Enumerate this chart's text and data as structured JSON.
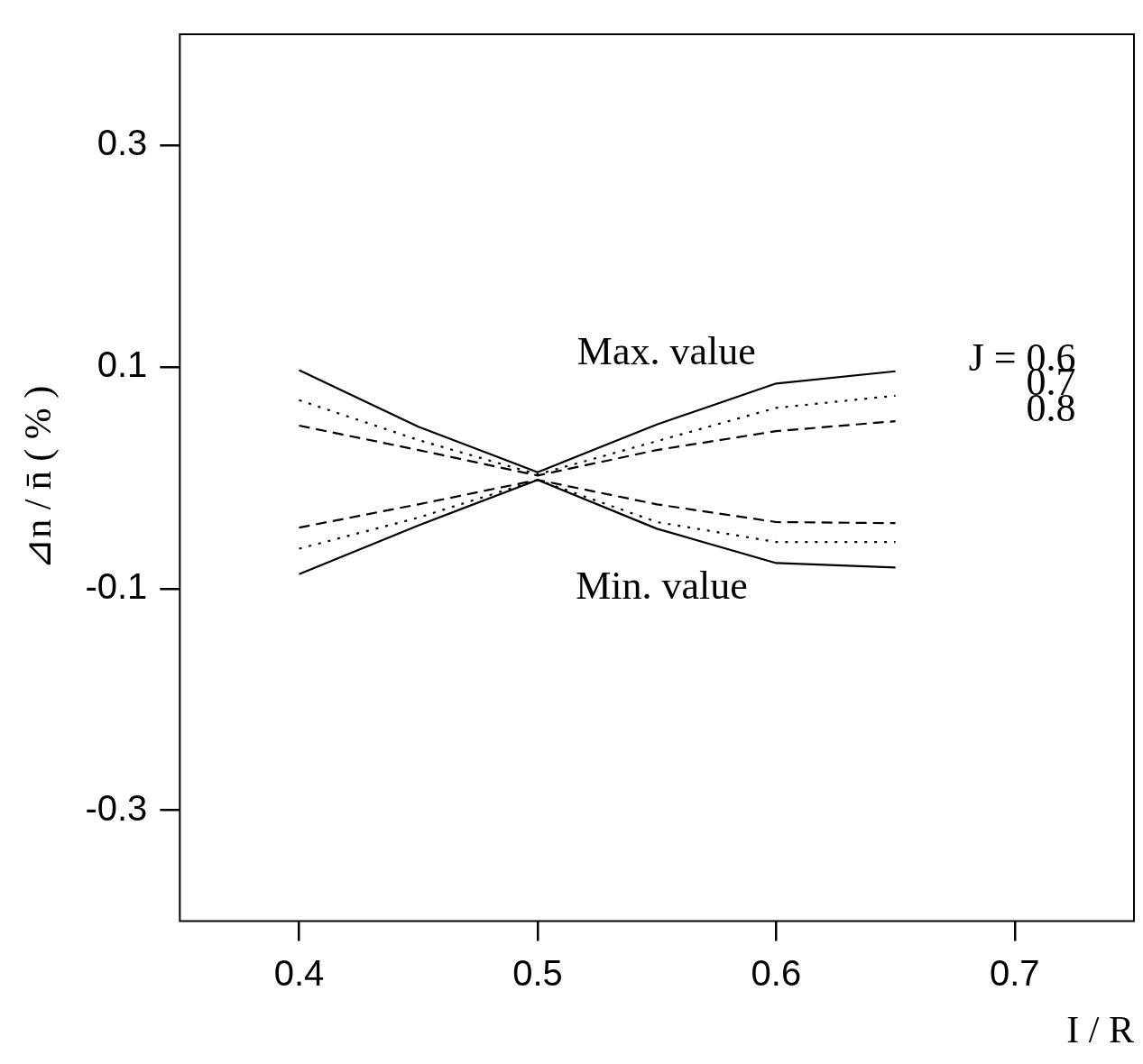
{
  "chart_data": {
    "type": "line",
    "xlabel": "I / R",
    "ylabel": "⊿n / n̄ ( % )",
    "x": [
      0.4,
      0.45,
      0.5,
      0.55,
      0.6,
      0.65
    ],
    "xlim": [
      0.35,
      0.75
    ],
    "ylim": [
      -0.4,
      0.4
    ],
    "xticks": [
      0.4,
      0.5,
      0.6,
      0.7
    ],
    "yticks": [
      -0.3,
      -0.1,
      0.1,
      0.3
    ],
    "series": [
      {
        "name": "J = 0.6",
        "color": "#000000",
        "line_style": "solid",
        "values": [
          0.097,
          0.046,
          0.005,
          0.048,
          0.085,
          0.096
        ]
      },
      {
        "name": "0.7",
        "color": "#000000",
        "line_style": "dotted",
        "values": [
          0.07,
          0.034,
          0.003,
          0.033,
          0.063,
          0.074
        ]
      },
      {
        "name": "0.8",
        "color": "#000000",
        "line_style": "dashed",
        "values": [
          0.047,
          0.025,
          0.002,
          0.025,
          0.042,
          0.051
        ]
      },
      {
        "color": "#000000",
        "line_style": "solid",
        "values": [
          -0.087,
          -0.043,
          -0.002,
          -0.046,
          -0.077,
          -0.081
        ]
      },
      {
        "color": "#000000",
        "line_style": "dotted",
        "values": [
          -0.064,
          -0.036,
          -0.002,
          -0.04,
          -0.058,
          -0.058
        ]
      },
      {
        "color": "#000000",
        "line_style": "dashed",
        "values": [
          -0.045,
          -0.024,
          -0.002,
          -0.024,
          -0.04,
          -0.041
        ]
      }
    ],
    "annotations": [
      "Max. value",
      "Min. value"
    ]
  }
}
